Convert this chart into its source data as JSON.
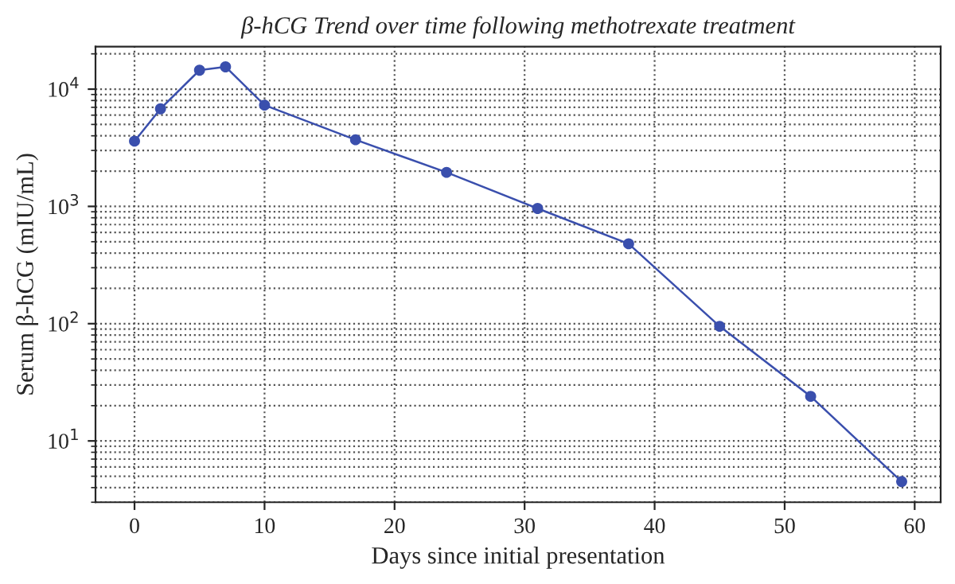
{
  "chart_data": {
    "type": "line",
    "title": "β-hCG Trend over time following methotrexate treatment",
    "xlabel": "Days since initial presentation",
    "ylabel": "Serum β-hCG (mIU/mL)",
    "x": [
      0,
      2,
      5,
      7,
      10,
      17,
      24,
      31,
      38,
      45,
      52,
      59
    ],
    "series": [
      {
        "color": "#3a4fad",
        "values": [
          3600,
          6800,
          14500,
          15500,
          7300,
          3700,
          1950,
          960,
          480,
          95,
          24,
          4.5
        ]
      }
    ],
    "log": "y",
    "xlim": [
      -3,
      62
    ],
    "ylim": [
      3,
      23000
    ],
    "xticks": [
      0,
      10,
      20,
      30,
      40,
      50,
      60
    ],
    "yticks": [
      {
        "value": 10,
        "label": "10$^{1}$"
      },
      {
        "value": 100,
        "label": "10$^{2}$"
      },
      {
        "value": 1000,
        "label": "10$^{3}$"
      },
      {
        "value": 10000,
        "label": "10$^{4}$"
      }
    ],
    "grid": true,
    "marker": "circle",
    "line_style": "solid"
  }
}
